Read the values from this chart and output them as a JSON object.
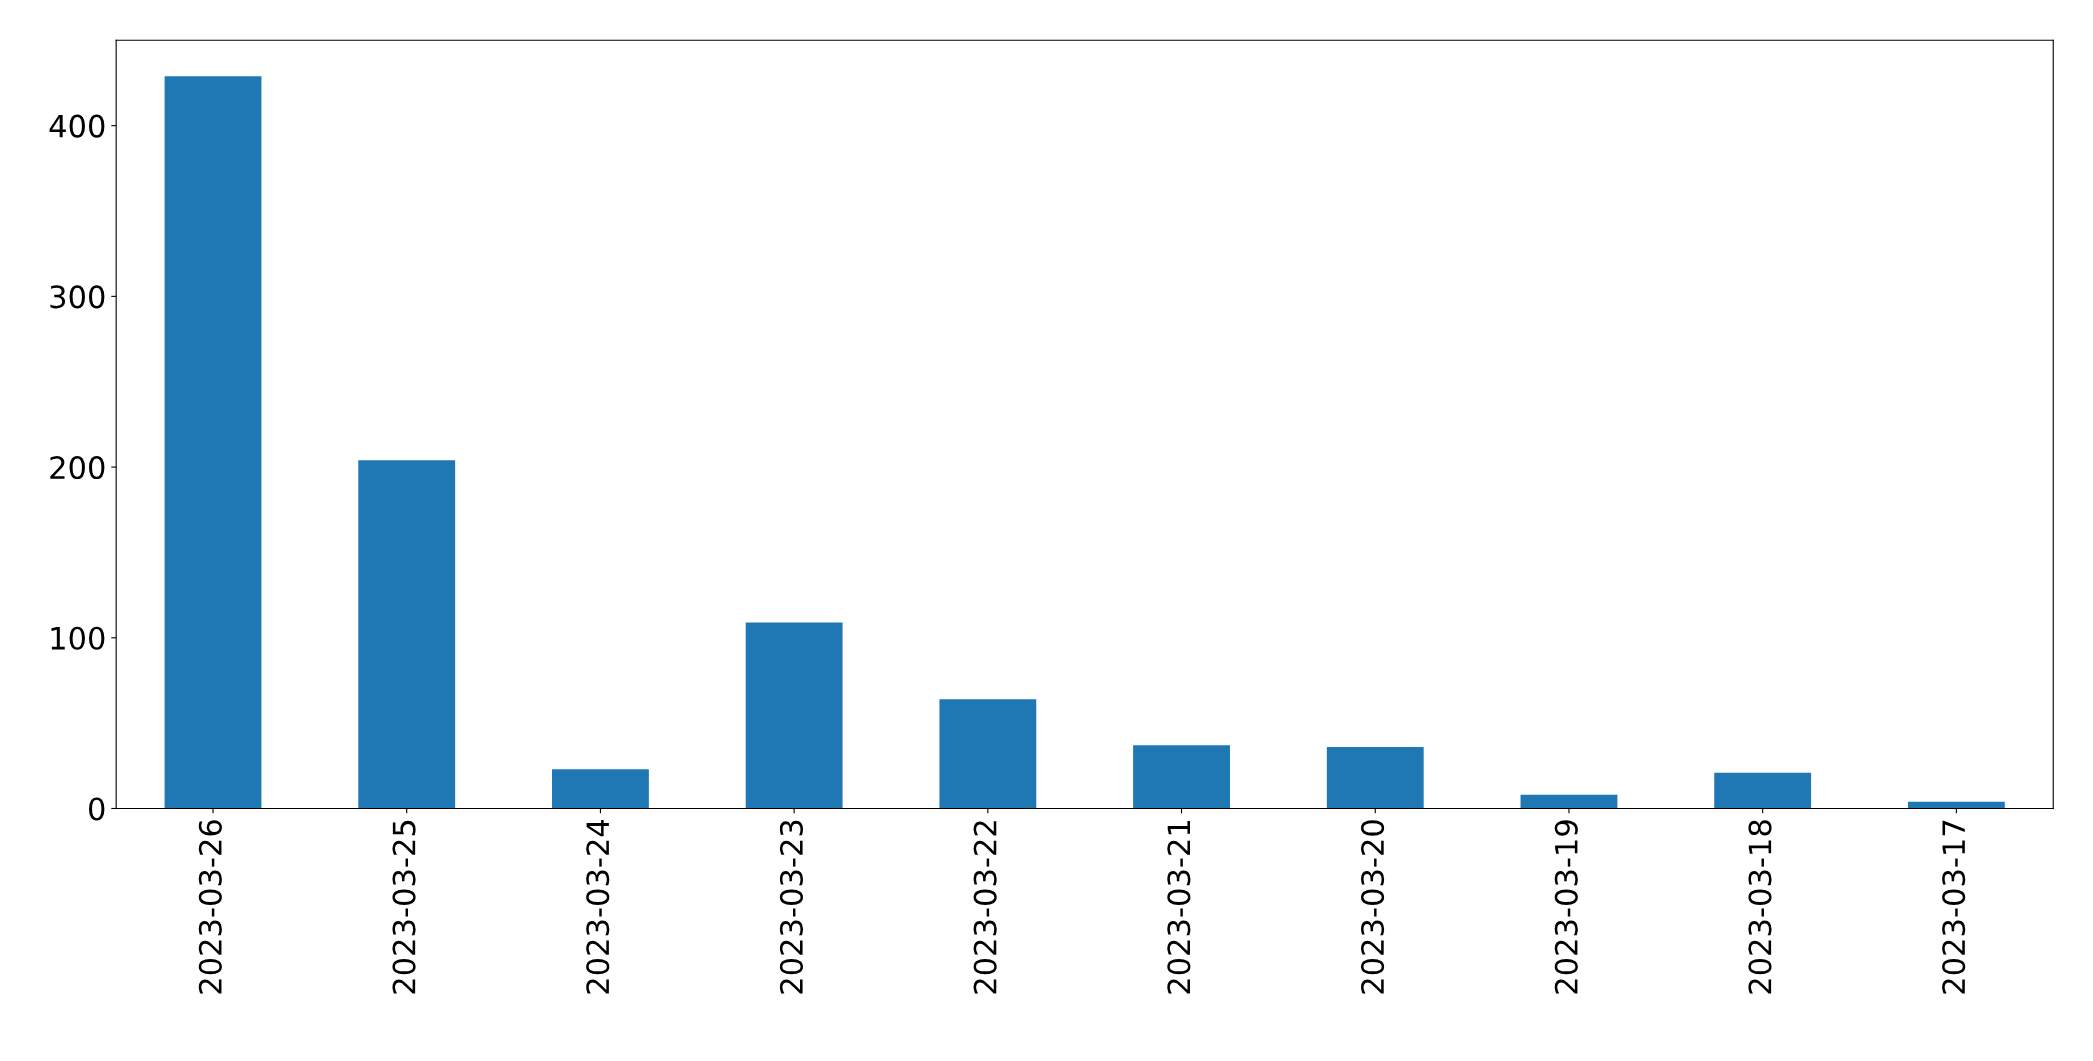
{
  "chart_data": {
    "type": "bar",
    "categories": [
      "2023-03-26",
      "2023-03-25",
      "2023-03-24",
      "2023-03-23",
      "2023-03-22",
      "2023-03-21",
      "2023-03-20",
      "2023-03-19",
      "2023-03-18",
      "2023-03-17"
    ],
    "values": [
      429,
      204,
      23,
      109,
      64,
      37,
      36,
      8,
      21,
      4
    ],
    "color": "#1f77b4",
    "ylim": [
      0,
      450
    ],
    "yticks": [
      0,
      100,
      200,
      300,
      400
    ],
    "grid": false,
    "legend": false
  }
}
